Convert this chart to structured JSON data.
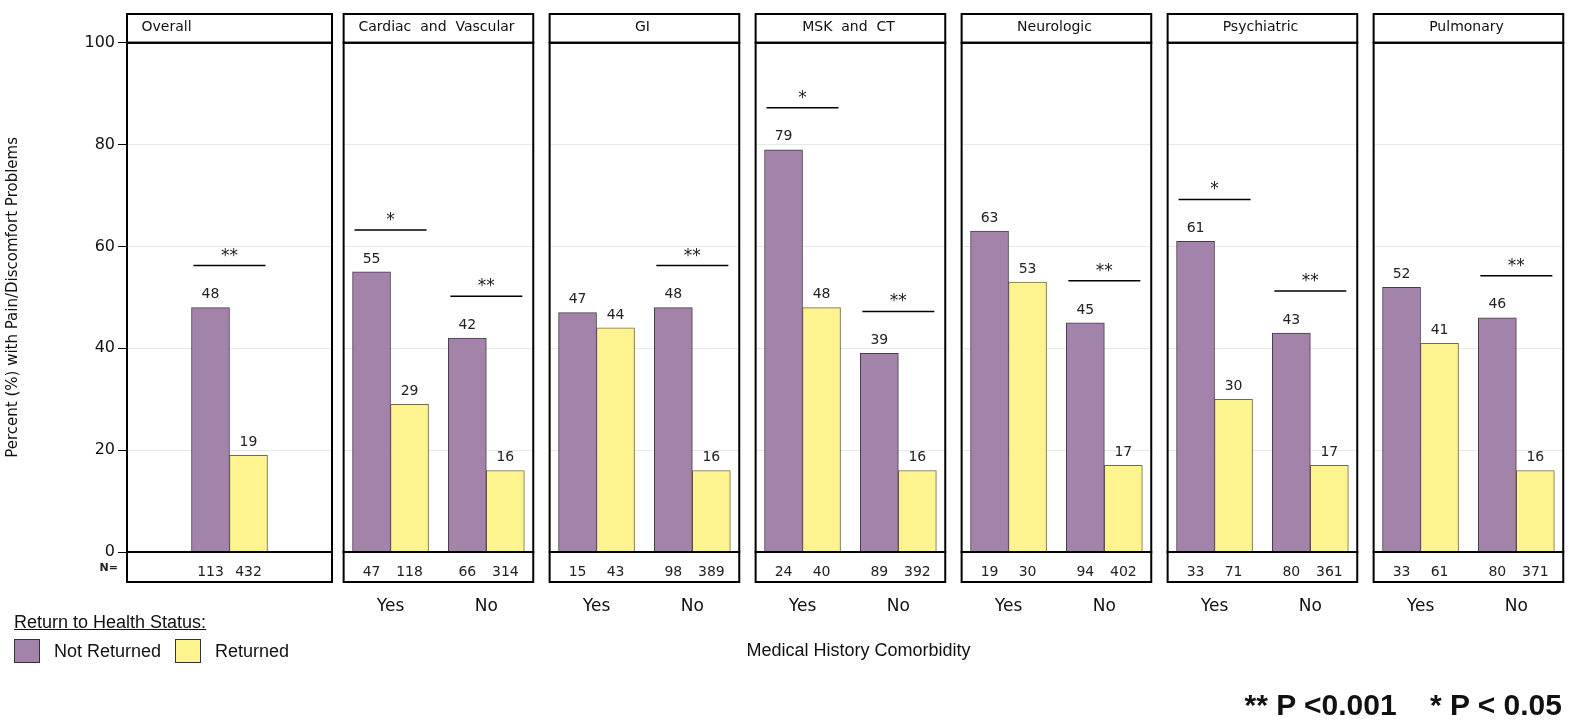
{
  "chart_data": [
    {
      "type": "bar",
      "title": "Overall",
      "ylabel": "Percent (%) with Pain/Discomfort Problems",
      "legend_title": "Return to Health Status:",
      "legend": "bottom left",
      "categories": [
        null
      ],
      "ylim": [
        0,
        100
      ],
      "yticks": [
        0,
        20,
        40,
        60,
        80,
        100
      ],
      "grid": "y",
      "tick_labels": "y",
      "data_labels": true,
      "series": [
        {
          "name": "Not Returned",
          "color": "#a383aa",
          "values": [
            48
          ]
        },
        {
          "name": "Returned",
          "color": "#fdf38f",
          "values": [
            19
          ]
        }
      ],
      "annotations": [
        {
          "text": "**",
          "y": 48
        },
        "N=",
        "113",
        "432"
      ]
    },
    {
      "type": "bar",
      "title": "Cardiac  and  Vascular",
      "categories": [
        "Yes",
        "No"
      ],
      "ylim": [
        0,
        100
      ],
      "yticks": [
        0,
        20,
        40,
        60,
        80,
        100
      ],
      "grid": "y",
      "tick_labels": "x",
      "data_labels": true,
      "series": [
        {
          "color": "#a383aa",
          "values": [
            55,
            42
          ]
        },
        {
          "color": "#fdf38f",
          "values": [
            29,
            16
          ]
        }
      ],
      "annotations": [
        {
          "text": "*",
          "x": "Yes",
          "y": 55
        },
        {
          "text": "**",
          "x": "No",
          "y": 42
        },
        "47",
        "66",
        "118",
        "314"
      ]
    },
    {
      "type": "bar",
      "title": "GI",
      "categories": [
        "Yes",
        "No"
      ],
      "ylim": [
        0,
        100
      ],
      "yticks": [
        0,
        20,
        40,
        60,
        80,
        100
      ],
      "grid": "y",
      "tick_labels": "x",
      "data_labels": true,
      "series": [
        {
          "color": "#a383aa",
          "values": [
            47,
            48
          ]
        },
        {
          "color": "#fdf38f",
          "values": [
            44,
            16
          ]
        }
      ],
      "annotations": [
        {
          "text": "**",
          "x": "No",
          "y": 48
        },
        "15",
        "98",
        "43",
        "389"
      ]
    },
    {
      "type": "bar",
      "title": "MSK  and  CT",
      "xlabel": "Medical History Comorbidity",
      "categories": [
        "Yes",
        "No"
      ],
      "ylim": [
        0,
        100
      ],
      "yticks": [
        0,
        20,
        40,
        60,
        80,
        100
      ],
      "grid": "y",
      "tick_labels": "x",
      "data_labels": true,
      "series": [
        {
          "color": "#a383aa",
          "values": [
            79,
            39
          ]
        },
        {
          "color": "#fdf38f",
          "values": [
            48,
            16
          ]
        }
      ],
      "annotations": [
        {
          "text": "*",
          "x": "Yes",
          "y": 79
        },
        {
          "text": "**",
          "x": "No",
          "y": 39
        },
        "24",
        "89",
        "40",
        "392"
      ]
    },
    {
      "type": "bar",
      "title": "Neurologic",
      "categories": [
        "Yes",
        "No"
      ],
      "ylim": [
        0,
        100
      ],
      "yticks": [
        0,
        20,
        40,
        60,
        80,
        100
      ],
      "grid": "y",
      "tick_labels": "x",
      "data_labels": true,
      "series": [
        {
          "color": "#a383aa",
          "values": [
            63,
            45
          ]
        },
        {
          "color": "#fdf38f",
          "values": [
            53,
            17
          ]
        }
      ],
      "annotations": [
        {
          "text": "**",
          "x": "No",
          "y": 45
        },
        "19",
        "94",
        "30",
        "402"
      ]
    },
    {
      "type": "bar",
      "title": "Psychiatric",
      "categories": [
        "Yes",
        "No"
      ],
      "ylim": [
        0,
        100
      ],
      "yticks": [
        0,
        20,
        40,
        60,
        80,
        100
      ],
      "grid": "y",
      "tick_labels": "x",
      "data_labels": true,
      "series": [
        {
          "color": "#a383aa",
          "values": [
            61,
            43
          ]
        },
        {
          "color": "#fdf38f",
          "values": [
            30,
            17
          ]
        }
      ],
      "annotations": [
        {
          "text": "*",
          "x": "Yes",
          "y": 61
        },
        {
          "text": "**",
          "x": "No",
          "y": 43
        },
        "33",
        "80",
        "71",
        "361"
      ]
    },
    {
      "type": "bar",
      "title": "Pulmonary",
      "categories": [
        "Yes",
        "No"
      ],
      "ylim": [
        0,
        100
      ],
      "yticks": [
        0,
        20,
        40,
        60,
        80,
        100
      ],
      "grid": "y",
      "tick_labels": "x",
      "data_labels": true,
      "series": [
        {
          "color": "#a383aa",
          "values": [
            52,
            46
          ]
        },
        {
          "color": "#fdf38f",
          "values": [
            41,
            16
          ]
        }
      ],
      "annotations": [
        {
          "text": "**",
          "x": "No",
          "y": 46
        },
        "** P <0.001    * P < 0.05",
        "33",
        "80",
        "61",
        "371"
      ]
    }
  ]
}
